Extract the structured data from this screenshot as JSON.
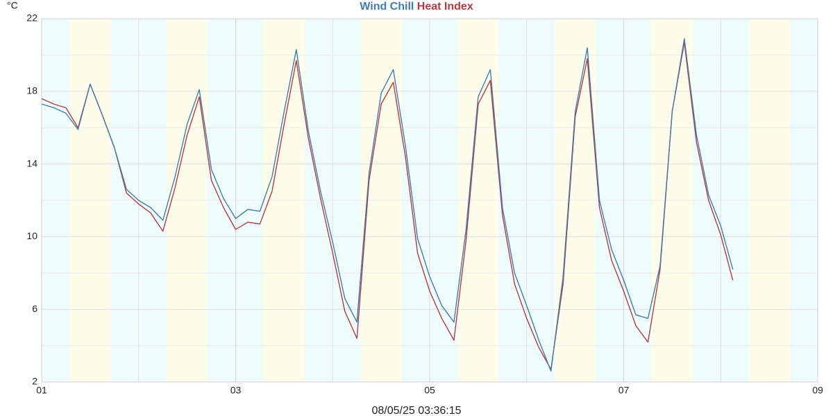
{
  "chart_data": {
    "type": "line",
    "y_unit": "°C",
    "footer": "08/05/25 03:36:15",
    "xlim": [
      1,
      9
    ],
    "xticks": [
      {
        "value": 1,
        "label": "01"
      },
      {
        "value": 3,
        "label": "03"
      },
      {
        "value": 5,
        "label": "05"
      },
      {
        "value": 7,
        "label": "07"
      },
      {
        "value": 9,
        "label": "09"
      }
    ],
    "ylim": [
      2,
      22
    ],
    "yticks": [
      2,
      6,
      10,
      14,
      18,
      22
    ],
    "grid": true,
    "x": [
      1,
      1.125,
      1.25,
      1.375,
      1.5,
      1.625,
      1.75,
      1.875,
      2,
      2.125,
      2.25,
      2.375,
      2.5,
      2.625,
      2.75,
      2.875,
      3,
      3.125,
      3.25,
      3.375,
      3.5,
      3.625,
      3.75,
      3.875,
      4,
      4.125,
      4.25,
      4.375,
      4.5,
      4.625,
      4.75,
      4.875,
      5,
      5.125,
      5.25,
      5.375,
      5.5,
      5.625,
      5.75,
      5.875,
      6,
      6.125,
      6.25,
      6.375,
      6.5,
      6.625,
      6.75,
      6.875,
      7,
      7.125,
      7.25,
      7.375,
      7.5,
      7.625,
      7.75,
      7.875,
      8,
      8.125
    ],
    "series": [
      {
        "name": "Wind Chill",
        "color": "#3f7cb5",
        "values": [
          17.3,
          17.1,
          16.8,
          15.9,
          18.4,
          16.7,
          14.9,
          12.6,
          12.0,
          11.6,
          10.9,
          13.3,
          16.2,
          18.1,
          13.7,
          12.1,
          11.0,
          11.5,
          11.4,
          13.3,
          16.9,
          20.3,
          15.8,
          12.5,
          9.7,
          6.6,
          5.3,
          13.5,
          17.9,
          19.2,
          15.0,
          9.9,
          7.8,
          6.2,
          5.3,
          10.4,
          17.7,
          19.2,
          11.6,
          8.0,
          6.2,
          4.3,
          2.6,
          7.8,
          16.9,
          20.4,
          12.0,
          9.3,
          7.6,
          5.7,
          5.5,
          8.4,
          16.9,
          20.9,
          15.6,
          12.3,
          10.6,
          8.2
        ]
      },
      {
        "name": "Heat Index",
        "color": "#b83a3f",
        "values": [
          17.6,
          17.3,
          17.1,
          16.0,
          18.4,
          16.7,
          14.9,
          12.4,
          11.8,
          11.3,
          10.3,
          12.7,
          15.6,
          17.7,
          13.1,
          11.6,
          10.4,
          10.8,
          10.7,
          12.5,
          16.2,
          19.7,
          15.4,
          12.1,
          9.1,
          5.9,
          4.4,
          13.1,
          17.3,
          18.5,
          14.4,
          9.1,
          7.0,
          5.5,
          4.3,
          9.8,
          17.3,
          18.6,
          11.2,
          7.4,
          5.5,
          3.9,
          2.7,
          7.4,
          16.6,
          19.8,
          11.6,
          8.7,
          7.0,
          5.1,
          4.2,
          8.2,
          16.9,
          20.7,
          15.2,
          12.0,
          10.1,
          7.6
        ]
      }
    ]
  }
}
